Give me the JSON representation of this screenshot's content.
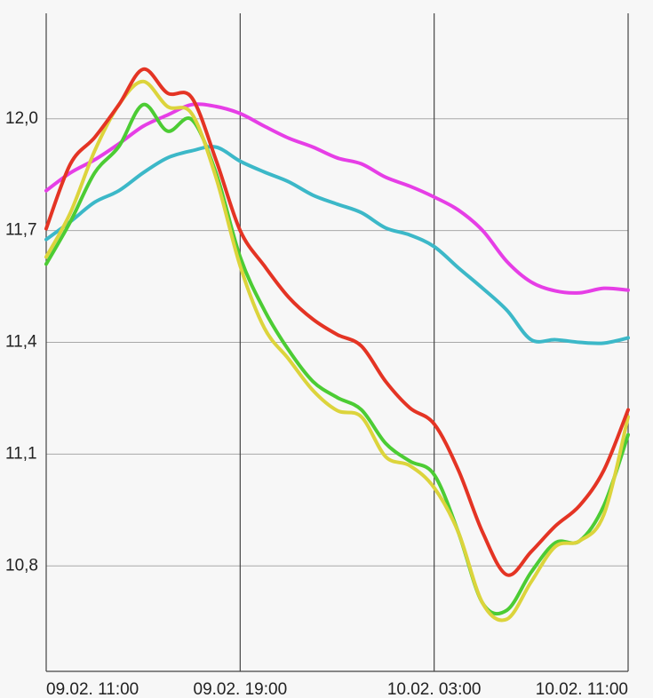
{
  "chart_data": {
    "type": "line",
    "x": [
      0,
      1,
      2,
      3,
      4,
      5,
      6,
      7,
      8,
      9,
      10,
      11,
      12,
      13,
      14,
      15,
      16,
      17,
      18,
      19,
      20,
      21,
      22,
      23,
      24
    ],
    "xlim": [
      0,
      24
    ],
    "xticks": [
      {
        "value": 0,
        "label": "09.02. 11:00"
      },
      {
        "value": 8,
        "label": "09.02. 19:00"
      },
      {
        "value": 16,
        "label": "10.02. 03:00"
      },
      {
        "value": 24,
        "label": "10.02. 11:00"
      }
    ],
    "ylim": [
      10.517,
      12.283
    ],
    "yticks": [
      {
        "value": 10.8,
        "label": "10,8"
      },
      {
        "value": 11.1,
        "label": "11,1"
      },
      {
        "value": 11.4,
        "label": "11,4"
      },
      {
        "value": 11.7,
        "label": "11,7"
      },
      {
        "value": 12.0,
        "label": "12,0"
      }
    ],
    "grid": true,
    "series": [
      {
        "color": "#e63ee6",
        "values": [
          11.807,
          11.855,
          11.89,
          11.933,
          11.98,
          12.01,
          12.038,
          12.033,
          12.014,
          11.98,
          11.948,
          11.924,
          11.895,
          11.879,
          11.843,
          11.819,
          11.79,
          11.755,
          11.7,
          11.617,
          11.562,
          11.538,
          11.533,
          11.545,
          11.54
        ]
      },
      {
        "color": "#3cb8c8",
        "values": [
          11.676,
          11.724,
          11.776,
          11.807,
          11.855,
          11.895,
          11.914,
          11.924,
          11.886,
          11.857,
          11.831,
          11.795,
          11.771,
          11.748,
          11.707,
          11.688,
          11.657,
          11.6,
          11.545,
          11.486,
          11.407,
          11.407,
          11.4,
          11.398,
          11.412
        ]
      },
      {
        "color": "#4ccc34",
        "values": [
          11.61,
          11.724,
          11.855,
          11.926,
          12.038,
          11.967,
          11.998,
          11.855,
          11.629,
          11.486,
          11.379,
          11.295,
          11.252,
          11.219,
          11.129,
          11.081,
          11.045,
          10.89,
          10.7,
          10.681,
          10.783,
          10.862,
          10.867,
          10.962,
          11.152
        ]
      },
      {
        "color": "#dcd43c",
        "values": [
          11.629,
          11.748,
          11.914,
          12.038,
          12.1,
          12.033,
          12.014,
          11.843,
          11.605,
          11.438,
          11.355,
          11.271,
          11.217,
          11.2,
          11.093,
          11.069,
          11.01,
          10.89,
          10.7,
          10.657,
          10.757,
          10.852,
          10.867,
          10.938,
          11.2
        ]
      },
      {
        "color": "#e43424",
        "values": [
          11.705,
          11.879,
          11.95,
          12.038,
          12.133,
          12.069,
          12.057,
          11.89,
          11.7,
          11.605,
          11.521,
          11.462,
          11.421,
          11.39,
          11.295,
          11.224,
          11.181,
          11.057,
          10.89,
          10.776,
          10.838,
          10.907,
          10.962,
          11.057,
          11.219
        ]
      }
    ]
  }
}
